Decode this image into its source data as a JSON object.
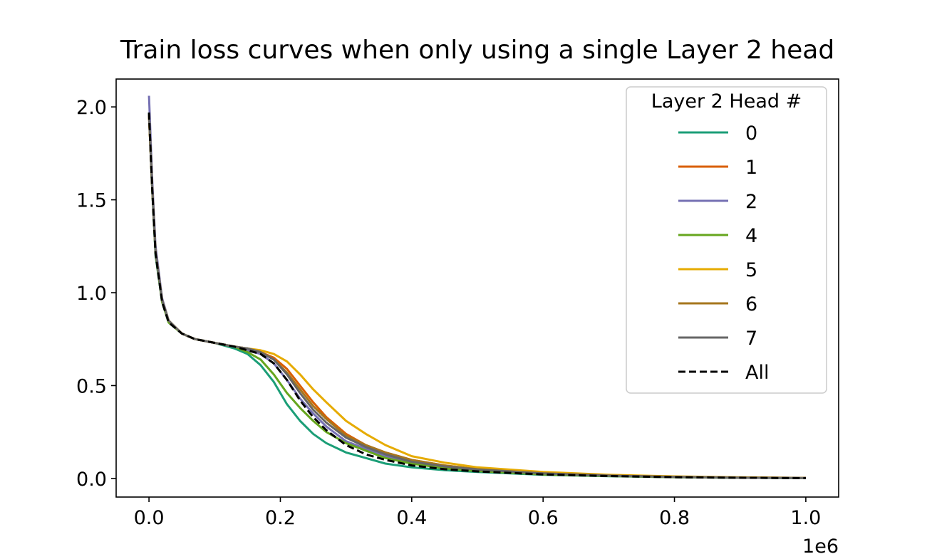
{
  "chart_data": {
    "type": "line",
    "title": "Train loss curves when only using a single Layer 2 head",
    "xlabel": "",
    "ylabel": "",
    "x_offset_label": "1e6",
    "xlim": [
      -0.05,
      1.05
    ],
    "ylim": [
      -0.1,
      2.15
    ],
    "x_ticks": [
      0.0,
      0.2,
      0.4,
      0.6,
      0.8,
      1.0
    ],
    "x_tick_labels": [
      "0.0",
      "0.2",
      "0.4",
      "0.6",
      "0.8",
      "1.0"
    ],
    "y_ticks": [
      0.0,
      0.5,
      1.0,
      1.5,
      2.0
    ],
    "y_tick_labels": [
      "0.0",
      "0.5",
      "1.0",
      "1.5",
      "2.0"
    ],
    "grid": false,
    "legend": {
      "title": "Layer 2 Head #",
      "placement": "upper right"
    },
    "series": [
      {
        "name": "0",
        "color": "#1b9e77",
        "dashed": false,
        "x": [
          0,
          0.005,
          0.01,
          0.02,
          0.03,
          0.05,
          0.07,
          0.1,
          0.13,
          0.15,
          0.17,
          0.19,
          0.21,
          0.23,
          0.25,
          0.27,
          0.3,
          0.33,
          0.36,
          0.4,
          0.45,
          0.5,
          0.6,
          0.7,
          0.8,
          0.9,
          1.0
        ],
        "y": [
          1.97,
          1.55,
          1.2,
          0.95,
          0.84,
          0.78,
          0.75,
          0.73,
          0.7,
          0.67,
          0.61,
          0.52,
          0.4,
          0.31,
          0.24,
          0.19,
          0.14,
          0.11,
          0.08,
          0.06,
          0.045,
          0.035,
          0.02,
          0.012,
          0.007,
          0.004,
          0.002
        ]
      },
      {
        "name": "1",
        "color": "#d95f02",
        "dashed": false,
        "x": [
          0,
          0.005,
          0.01,
          0.02,
          0.03,
          0.05,
          0.07,
          0.1,
          0.13,
          0.15,
          0.17,
          0.19,
          0.21,
          0.23,
          0.25,
          0.27,
          0.3,
          0.33,
          0.36,
          0.4,
          0.45,
          0.5,
          0.6,
          0.7,
          0.8,
          0.9,
          1.0
        ],
        "y": [
          1.95,
          1.56,
          1.22,
          0.96,
          0.85,
          0.78,
          0.75,
          0.73,
          0.71,
          0.7,
          0.68,
          0.65,
          0.59,
          0.5,
          0.41,
          0.33,
          0.24,
          0.18,
          0.14,
          0.1,
          0.07,
          0.05,
          0.03,
          0.016,
          0.009,
          0.005,
          0.003
        ]
      },
      {
        "name": "2",
        "color": "#7570b3",
        "dashed": false,
        "x": [
          0,
          0.005,
          0.01,
          0.02,
          0.03,
          0.05,
          0.07,
          0.1,
          0.13,
          0.15,
          0.17,
          0.19,
          0.21,
          0.23,
          0.25,
          0.27,
          0.3,
          0.33,
          0.36,
          0.4,
          0.45,
          0.5,
          0.6,
          0.7,
          0.8,
          0.9,
          1.0
        ],
        "y": [
          2.06,
          1.6,
          1.25,
          0.97,
          0.85,
          0.78,
          0.75,
          0.73,
          0.71,
          0.69,
          0.67,
          0.62,
          0.53,
          0.43,
          0.35,
          0.28,
          0.2,
          0.16,
          0.12,
          0.09,
          0.06,
          0.045,
          0.025,
          0.014,
          0.008,
          0.004,
          0.002
        ]
      },
      {
        "name": "4",
        "color": "#66a61e",
        "dashed": false,
        "x": [
          0,
          0.005,
          0.01,
          0.02,
          0.03,
          0.05,
          0.07,
          0.1,
          0.13,
          0.15,
          0.17,
          0.19,
          0.21,
          0.23,
          0.25,
          0.27,
          0.3,
          0.33,
          0.36,
          0.4,
          0.45,
          0.5,
          0.6,
          0.7,
          0.8,
          0.9,
          1.0
        ],
        "y": [
          1.96,
          1.55,
          1.21,
          0.95,
          0.84,
          0.78,
          0.75,
          0.73,
          0.71,
          0.68,
          0.64,
          0.56,
          0.46,
          0.38,
          0.31,
          0.25,
          0.19,
          0.15,
          0.11,
          0.08,
          0.055,
          0.04,
          0.022,
          0.013,
          0.007,
          0.004,
          0.002
        ]
      },
      {
        "name": "5",
        "color": "#e6ab02",
        "dashed": false,
        "x": [
          0,
          0.005,
          0.01,
          0.02,
          0.03,
          0.05,
          0.07,
          0.1,
          0.13,
          0.15,
          0.17,
          0.19,
          0.21,
          0.23,
          0.25,
          0.27,
          0.3,
          0.33,
          0.36,
          0.4,
          0.45,
          0.5,
          0.6,
          0.7,
          0.8,
          0.9,
          1.0
        ],
        "y": [
          1.96,
          1.56,
          1.22,
          0.96,
          0.85,
          0.78,
          0.75,
          0.73,
          0.71,
          0.7,
          0.69,
          0.67,
          0.63,
          0.56,
          0.48,
          0.41,
          0.31,
          0.24,
          0.18,
          0.12,
          0.085,
          0.06,
          0.035,
          0.02,
          0.011,
          0.006,
          0.003
        ]
      },
      {
        "name": "6",
        "color": "#a6761d",
        "dashed": false,
        "x": [
          0,
          0.005,
          0.01,
          0.02,
          0.03,
          0.05,
          0.07,
          0.1,
          0.13,
          0.15,
          0.17,
          0.19,
          0.21,
          0.23,
          0.25,
          0.27,
          0.3,
          0.33,
          0.36,
          0.4,
          0.45,
          0.5,
          0.6,
          0.7,
          0.8,
          0.9,
          1.0
        ],
        "y": [
          1.95,
          1.56,
          1.22,
          0.96,
          0.85,
          0.78,
          0.75,
          0.73,
          0.71,
          0.7,
          0.68,
          0.64,
          0.57,
          0.48,
          0.39,
          0.32,
          0.23,
          0.18,
          0.14,
          0.1,
          0.07,
          0.05,
          0.028,
          0.016,
          0.009,
          0.005,
          0.003
        ]
      },
      {
        "name": "7",
        "color": "#666666",
        "dashed": false,
        "x": [
          0,
          0.005,
          0.01,
          0.02,
          0.03,
          0.05,
          0.07,
          0.1,
          0.13,
          0.15,
          0.17,
          0.19,
          0.21,
          0.23,
          0.25,
          0.27,
          0.3,
          0.33,
          0.36,
          0.4,
          0.45,
          0.5,
          0.6,
          0.7,
          0.8,
          0.9,
          1.0
        ],
        "y": [
          1.96,
          1.56,
          1.22,
          0.96,
          0.85,
          0.78,
          0.75,
          0.73,
          0.71,
          0.7,
          0.68,
          0.64,
          0.56,
          0.46,
          0.37,
          0.3,
          0.22,
          0.17,
          0.13,
          0.09,
          0.065,
          0.048,
          0.027,
          0.015,
          0.008,
          0.004,
          0.002
        ]
      },
      {
        "name": "All",
        "color": "#000000",
        "dashed": true,
        "x": [
          0,
          0.005,
          0.01,
          0.02,
          0.03,
          0.05,
          0.07,
          0.1,
          0.13,
          0.15,
          0.17,
          0.19,
          0.21,
          0.23,
          0.25,
          0.27,
          0.3,
          0.33,
          0.36,
          0.4,
          0.45,
          0.5,
          0.6,
          0.7,
          0.8,
          0.9,
          1.0
        ],
        "y": [
          1.97,
          1.55,
          1.21,
          0.95,
          0.84,
          0.78,
          0.75,
          0.73,
          0.71,
          0.69,
          0.67,
          0.62,
          0.53,
          0.42,
          0.33,
          0.26,
          0.18,
          0.13,
          0.1,
          0.07,
          0.05,
          0.038,
          0.022,
          0.013,
          0.007,
          0.004,
          0.002
        ]
      }
    ]
  }
}
